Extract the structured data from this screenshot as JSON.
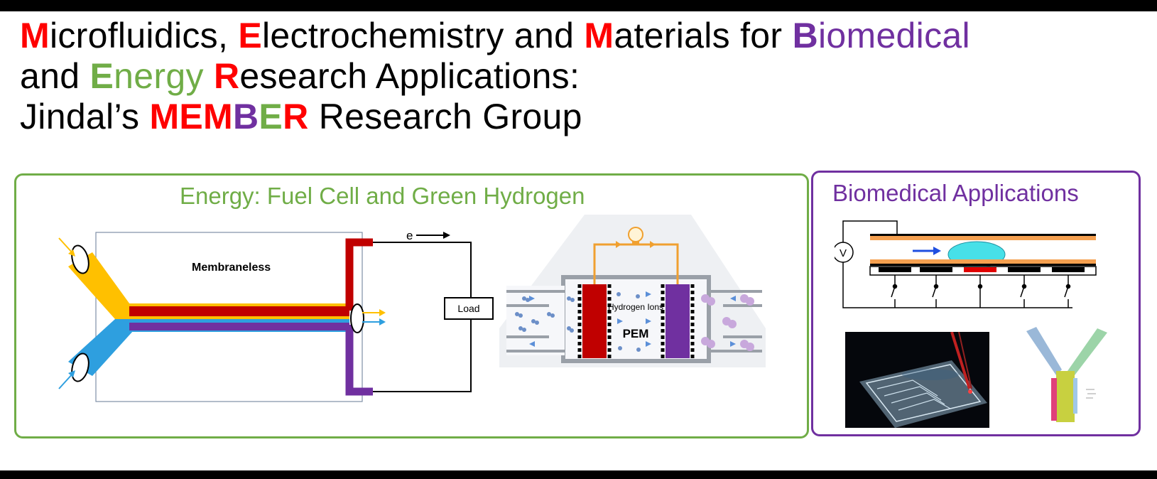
{
  "title": {
    "line1": [
      {
        "text": "M",
        "color": "red"
      },
      {
        "text": "icrofluidics, ",
        "color": "black"
      },
      {
        "text": "E",
        "color": "red"
      },
      {
        "text": "lectrochemistry and ",
        "color": "black"
      },
      {
        "text": "M",
        "color": "red"
      },
      {
        "text": "aterials for ",
        "color": "black"
      },
      {
        "text": "B",
        "color": "purple"
      },
      {
        "text": "iomedical",
        "color": "purple"
      }
    ],
    "line2": [
      {
        "text": "and ",
        "color": "black"
      },
      {
        "text": "E",
        "color": "green"
      },
      {
        "text": "nergy ",
        "color": "green"
      },
      {
        "text": "R",
        "color": "red"
      },
      {
        "text": "esearch Applications:",
        "color": "black"
      }
    ],
    "line3": [
      {
        "text": "Jindal’s ",
        "color": "black"
      },
      {
        "text": "MEM",
        "color": "red"
      },
      {
        "text": "B",
        "color": "purple"
      },
      {
        "text": "E",
        "color": "green"
      },
      {
        "text": "R",
        "color": "red"
      },
      {
        "text": " Research Group",
        "color": "black"
      }
    ]
  },
  "colors": {
    "red": "#ff0000",
    "purple": "#7030a0",
    "green": "#70ad47",
    "black": "#000000"
  },
  "energy_panel": {
    "title": "Energy: Fuel Cell and Green Hydrogen",
    "membraneless_diagram": {
      "label": "Membraneless",
      "electron": "e",
      "load": "Load"
    },
    "pem_diagram": {
      "ions_label": "Hydrogen Ions",
      "membrane_label": "PEM",
      "icon": "lightbulb-icon"
    }
  },
  "bio_panel": {
    "title": "Biomedical Applications",
    "electrowetting_diagram": {
      "meter": "V"
    },
    "photos": [
      "microfluidic-chip-photo",
      "antibody-sensor-illustration"
    ]
  }
}
